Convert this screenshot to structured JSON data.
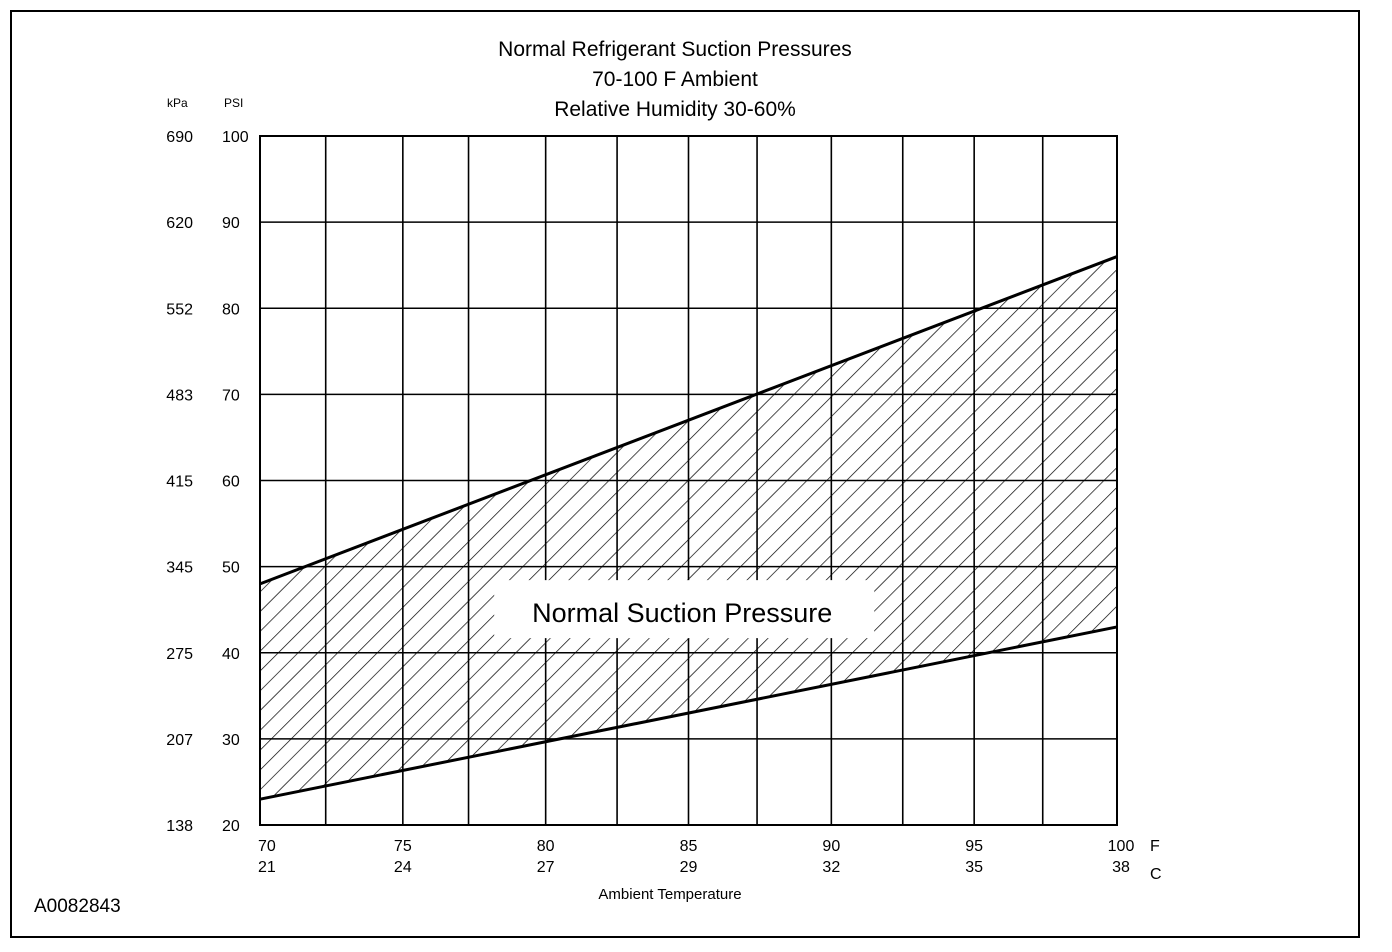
{
  "chart_data": {
    "type": "area",
    "title_lines": [
      "Normal  Refrigerant  Suction  Pressures",
      "70-100 F Ambient",
      "Relative Humidity 30-60%"
    ],
    "xlabel": "Ambient Temperature",
    "x_unit_primary": "F",
    "x_unit_secondary": "C",
    "y_unit_primary": "PSI",
    "y_unit_secondary": "kPa",
    "xlim": [
      70,
      100
    ],
    "ylim": [
      20,
      100
    ],
    "x_ticks_f": [
      "70",
      "75",
      "80",
      "85",
      "90",
      "95",
      "100"
    ],
    "x_ticks_c": [
      "21",
      "24",
      "27",
      "29",
      "32",
      "35",
      "38"
    ],
    "y_ticks_psi": [
      "20",
      "30",
      "40",
      "50",
      "60",
      "70",
      "80",
      "90",
      "100"
    ],
    "y_ticks_kpa": [
      "138",
      "207",
      "275",
      "345",
      "415",
      "483",
      "552",
      "620",
      "690"
    ],
    "x_gridlines": [
      70,
      72.3,
      75,
      77.3,
      80,
      82.5,
      85,
      87.4,
      90,
      92.5,
      95,
      97.4,
      100
    ],
    "y_gridlines": [
      20,
      30,
      40,
      50,
      60,
      70,
      80,
      90,
      100
    ],
    "series": [
      {
        "name": "Normal Suction Pressure",
        "x": [
          70,
          100
        ],
        "upper": [
          48,
          86
        ],
        "lower": [
          23,
          43
        ]
      }
    ],
    "grid": true,
    "legend": "none"
  },
  "figure_id": "A0082843",
  "colors": {
    "line": "#000000",
    "background": "#ffffff",
    "hatch": "#000000"
  }
}
